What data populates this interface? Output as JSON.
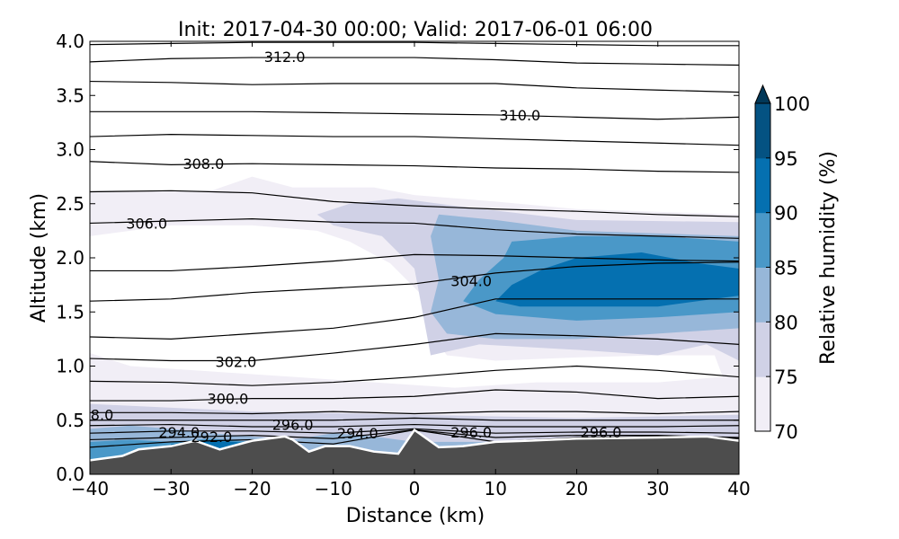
{
  "chart_data": {
    "type": "contour",
    "title": "Init: 2017-04-30 00:00; Valid: 2017-06-01 06:00",
    "xlabel": "Distance (km)",
    "ylabel": "Altitude (km)",
    "xlim": [
      -40,
      40
    ],
    "ylim": [
      0,
      4
    ],
    "xticks": [
      -40,
      -30,
      -20,
      -10,
      0,
      10,
      20,
      30,
      40
    ],
    "xtick_labels": [
      "−40",
      "−30",
      "−20",
      "−10",
      "0",
      "10",
      "20",
      "30",
      "40"
    ],
    "yticks": [
      0,
      0.5,
      1,
      1.5,
      2,
      2.5,
      3,
      3.5,
      4
    ],
    "ytick_labels": [
      "0.0",
      "0.5",
      "1.0",
      "1.5",
      "2.0",
      "2.5",
      "3.0",
      "3.5",
      "4.0"
    ],
    "colorbar": {
      "label": "Relative humidity (%)",
      "ticks": [
        "70",
        "75",
        "80",
        "85",
        "90",
        "95",
        "100"
      ],
      "extend": "max",
      "levels": [
        {
          "from": 70,
          "color": "#f1eef6"
        },
        {
          "from": 75,
          "color": "#d0d1e6"
        },
        {
          "from": 80,
          "color": "#97b7d9"
        },
        {
          "from": 85,
          "color": "#4a98c8"
        },
        {
          "from": 90,
          "color": "#0570b0"
        },
        {
          "from": 95,
          "color": "#045282"
        }
      ],
      "over_color": "#023858"
    },
    "terrain": {
      "color": "#4d4d4d",
      "x": [
        -40,
        -36,
        -34,
        -30,
        -27,
        -24,
        -20,
        -16,
        -15,
        -13,
        -11,
        -8,
        -5,
        -2,
        0,
        3,
        6,
        10,
        14,
        20,
        30,
        36,
        40
      ],
      "h": [
        0.13,
        0.17,
        0.23,
        0.26,
        0.31,
        0.23,
        0.31,
        0.35,
        0.32,
        0.21,
        0.26,
        0.26,
        0.21,
        0.19,
        0.41,
        0.25,
        0.26,
        0.3,
        0.31,
        0.33,
        0.34,
        0.35,
        0.31
      ]
    },
    "rh_regions": [
      {
        "level": 70,
        "pts": [
          [
            -40,
            0
          ],
          [
            -40,
            2.62
          ],
          [
            -25,
            2.62
          ],
          [
            -20,
            2.75
          ],
          [
            -15,
            2.65
          ],
          [
            -5,
            2.65
          ],
          [
            0,
            2.58
          ],
          [
            10,
            2.52
          ],
          [
            20,
            2.45
          ],
          [
            40,
            2.4
          ],
          [
            40,
            0
          ]
        ]
      },
      {
        "level": 0,
        "pts": [
          [
            -40,
            1.12
          ],
          [
            -40,
            2.2
          ],
          [
            -30,
            2.3
          ],
          [
            -20,
            2.3
          ],
          [
            -12,
            2.25
          ],
          [
            -8,
            2.15
          ],
          [
            -3,
            1.95
          ],
          [
            1,
            1.65
          ],
          [
            2,
            1.3
          ],
          [
            4,
            1.1
          ],
          [
            10,
            1.05
          ],
          [
            20,
            1.08
          ],
          [
            30,
            1.1
          ],
          [
            37,
            1.1
          ],
          [
            38,
            0.9
          ],
          [
            30,
            0.85
          ],
          [
            15,
            0.85
          ],
          [
            5,
            0.8
          ],
          [
            -5,
            0.85
          ],
          [
            -15,
            0.9
          ],
          [
            -25,
            0.95
          ],
          [
            -35,
            1.0
          ]
        ]
      },
      {
        "level": 75,
        "pts": [
          [
            -12,
            2.4
          ],
          [
            -8,
            2.5
          ],
          [
            -2,
            2.55
          ],
          [
            5,
            2.48
          ],
          [
            20,
            2.35
          ],
          [
            40,
            2.33
          ],
          [
            40,
            1.05
          ],
          [
            36,
            1.2
          ],
          [
            30,
            1.1
          ],
          [
            20,
            1.15
          ],
          [
            8,
            1.2
          ],
          [
            2,
            1.1
          ],
          [
            1,
            1.5
          ],
          [
            0,
            1.9
          ],
          [
            -4,
            2.2
          ],
          [
            -10,
            2.3
          ]
        ]
      },
      {
        "level": 75,
        "pts": [
          [
            -40,
            0.65
          ],
          [
            -20,
            0.58
          ],
          [
            0,
            0.55
          ],
          [
            20,
            0.52
          ],
          [
            40,
            0.55
          ],
          [
            40,
            0
          ],
          [
            -40,
            0
          ]
        ]
      },
      {
        "level": 80,
        "pts": [
          [
            3,
            2.4
          ],
          [
            10,
            2.35
          ],
          [
            20,
            2.25
          ],
          [
            40,
            2.2
          ],
          [
            40,
            1.35
          ],
          [
            30,
            1.3
          ],
          [
            20,
            1.25
          ],
          [
            10,
            1.25
          ],
          [
            4,
            1.3
          ],
          [
            2,
            1.5
          ],
          [
            3,
            1.8
          ],
          [
            2,
            2.2
          ]
        ]
      },
      {
        "level": 80,
        "pts": [
          [
            -40,
            0.42
          ],
          [
            -35,
            0.45
          ],
          [
            -30,
            0.42
          ],
          [
            -25,
            0.38
          ],
          [
            -20,
            0.35
          ],
          [
            -15,
            0.32
          ],
          [
            -10,
            0.38
          ],
          [
            -5,
            0.35
          ],
          [
            0,
            0.3
          ],
          [
            40,
            0.3
          ],
          [
            40,
            0
          ],
          [
            -40,
            0
          ]
        ]
      },
      {
        "level": 85,
        "pts": [
          [
            12,
            2.15
          ],
          [
            20,
            2.2
          ],
          [
            30,
            2.2
          ],
          [
            40,
            2.15
          ],
          [
            40,
            1.5
          ],
          [
            30,
            1.45
          ],
          [
            20,
            1.42
          ],
          [
            10,
            1.48
          ],
          [
            6,
            1.6
          ],
          [
            8,
            1.8
          ],
          [
            11,
            2.0
          ]
        ]
      },
      {
        "level": 85,
        "pts": [
          [
            -40,
            0.3
          ],
          [
            -35,
            0.32
          ],
          [
            -30,
            0.3
          ],
          [
            -25,
            0.33
          ],
          [
            -20,
            0.3
          ],
          [
            -16,
            0.36
          ],
          [
            -16,
            0
          ],
          [
            -40,
            0
          ]
        ]
      },
      {
        "level": 90,
        "pts": [
          [
            12,
            1.75
          ],
          [
            16,
            1.9
          ],
          [
            20,
            2.0
          ],
          [
            28,
            2.05
          ],
          [
            35,
            1.95
          ],
          [
            40,
            1.9
          ],
          [
            40,
            1.65
          ],
          [
            30,
            1.55
          ],
          [
            20,
            1.55
          ],
          [
            13,
            1.55
          ],
          [
            10,
            1.6
          ]
        ]
      },
      {
        "level": 90,
        "pts": [
          [
            -30,
            0.28
          ],
          [
            -25,
            0.31
          ],
          [
            -20,
            0.29
          ],
          [
            -25,
            0.2
          ],
          [
            -30,
            0.2
          ]
        ]
      }
    ],
    "isentropes": {
      "x": [
        -40,
        -30,
        -20,
        -10,
        0,
        10,
        20,
        30,
        40
      ],
      "lines": [
        [
          3.97,
          3.98,
          3.99,
          3.99,
          3.99,
          3.98,
          3.97,
          3.96,
          3.96
        ],
        [
          3.81,
          3.84,
          3.85,
          3.85,
          3.85,
          3.83,
          3.8,
          3.79,
          3.78
        ],
        [
          3.63,
          3.62,
          3.6,
          3.61,
          3.61,
          3.61,
          3.57,
          3.55,
          3.53
        ],
        [
          3.35,
          3.35,
          3.35,
          3.34,
          3.33,
          3.32,
          3.3,
          3.28,
          3.3
        ],
        [
          3.12,
          3.14,
          3.13,
          3.12,
          3.12,
          3.1,
          3.08,
          3.06,
          3.04
        ],
        [
          2.89,
          2.86,
          2.87,
          2.86,
          2.85,
          2.83,
          2.82,
          2.8,
          2.79
        ],
        [
          2.61,
          2.62,
          2.6,
          2.52,
          2.48,
          2.45,
          2.43,
          2.4,
          2.38
        ],
        [
          2.32,
          2.34,
          2.36,
          2.33,
          2.32,
          2.26,
          2.22,
          2.2,
          2.18
        ],
        [
          1.88,
          1.88,
          1.92,
          1.97,
          2.03,
          2.02,
          2.0,
          1.98,
          1.97
        ],
        [
          1.6,
          1.62,
          1.68,
          1.72,
          1.76,
          1.86,
          1.92,
          1.95,
          1.96
        ],
        [
          1.27,
          1.25,
          1.3,
          1.35,
          1.45,
          1.62,
          1.62,
          1.62,
          1.62
        ],
        [
          1.07,
          1.05,
          1.05,
          1.12,
          1.2,
          1.3,
          1.28,
          1.25,
          1.2
        ],
        [
          0.86,
          0.85,
          0.82,
          0.85,
          0.9,
          0.96,
          1.0,
          0.96,
          0.9
        ],
        [
          0.68,
          0.68,
          0.7,
          0.7,
          0.72,
          0.78,
          0.76,
          0.7,
          0.72
        ],
        [
          0.57,
          0.57,
          0.56,
          0.58,
          0.56,
          0.58,
          0.58,
          0.56,
          0.58
        ],
        [
          0.5,
          0.5,
          0.5,
          0.5,
          0.52,
          0.5,
          0.5,
          0.5,
          0.5
        ],
        [
          0.45,
          0.46,
          0.44,
          0.44,
          0.46,
          0.44,
          0.44,
          0.44,
          0.45
        ],
        [
          0.38,
          0.4,
          0.4,
          0.38,
          0.42,
          0.38,
          0.39,
          0.39,
          0.38
        ],
        [
          0.32,
          0.34,
          0.36,
          0.33,
          0.41,
          0.34,
          0.36,
          0.36,
          0.34
        ],
        [
          0.25,
          0.3,
          0.32,
          0.28,
          0.41,
          0.3,
          0.34,
          0.35,
          0.33
        ]
      ]
    },
    "contour_labels": [
      {
        "text": "312.0",
        "x": -16,
        "y": 3.86
      },
      {
        "text": "310.0",
        "x": 13,
        "y": 3.32
      },
      {
        "text": "308.0",
        "x": -26,
        "y": 2.87
      },
      {
        "text": "306.0",
        "x": -33,
        "y": 2.32
      },
      {
        "text": "304.0",
        "x": 7,
        "y": 1.79
      },
      {
        "text": "302.0",
        "x": -22,
        "y": 1.04
      },
      {
        "text": "300.0",
        "x": -23,
        "y": 0.7
      },
      {
        "text": "8.0",
        "x": -38.5,
        "y": 0.55
      },
      {
        "text": "294.0",
        "x": -29,
        "y": 0.39
      },
      {
        "text": "292.0",
        "x": -25,
        "y": 0.35
      },
      {
        "text": "296.0",
        "x": -15,
        "y": 0.46
      },
      {
        "text": "294.0",
        "x": -7,
        "y": 0.38
      },
      {
        "text": "296.0",
        "x": 7,
        "y": 0.39
      },
      {
        "text": "296.0",
        "x": 23,
        "y": 0.39
      }
    ]
  }
}
